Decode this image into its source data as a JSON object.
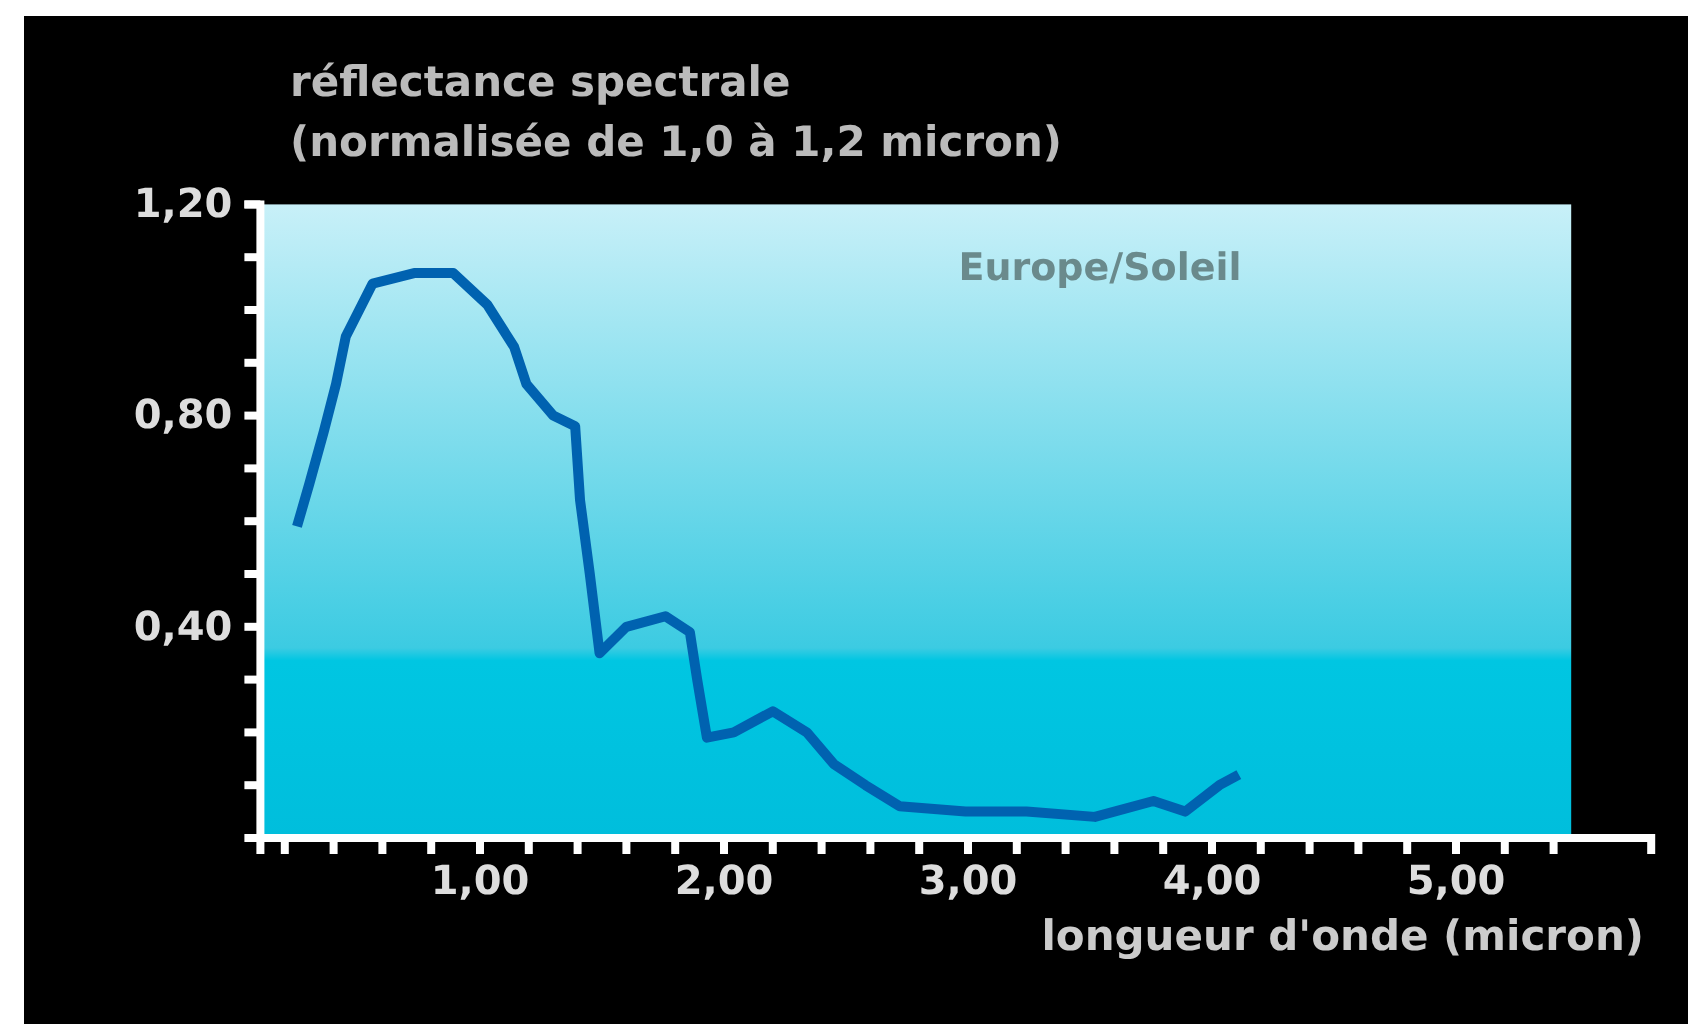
{
  "chart_data": {
    "type": "line",
    "title": "réflectance spectrale",
    "subtitle": "(normalisée de 1,0 à 1,2 micron)",
    "xlabel": "longueur d'onde (micron)",
    "annotations": [
      "Europe/Soleil"
    ],
    "xlim": [
      0.1,
      5.8
    ],
    "ylim": [
      0,
      1.2
    ],
    "xticks": [
      {
        "value": 0.2,
        "label": null
      },
      {
        "value": 0.4,
        "label": null
      },
      {
        "value": 0.6,
        "label": null
      },
      {
        "value": 0.8,
        "label": null
      },
      {
        "value": 1,
        "label": "1,00"
      },
      {
        "value": 1.2,
        "label": null
      },
      {
        "value": 1.4,
        "label": null
      },
      {
        "value": 1.6,
        "label": null
      },
      {
        "value": 1.8,
        "label": null
      },
      {
        "value": 2,
        "label": "2,00"
      },
      {
        "value": 2.2,
        "label": null
      },
      {
        "value": 2.4,
        "label": null
      },
      {
        "value": 2.6,
        "label": null
      },
      {
        "value": 2.8,
        "label": null
      },
      {
        "value": 3,
        "label": "3,00"
      },
      {
        "value": 3.2,
        "label": null
      },
      {
        "value": 3.4,
        "label": null
      },
      {
        "value": 3.6,
        "label": null
      },
      {
        "value": 3.8,
        "label": null
      },
      {
        "value": 4,
        "label": "4,00"
      },
      {
        "value": 4.2,
        "label": null
      },
      {
        "value": 4.4,
        "label": null
      },
      {
        "value": 4.6,
        "label": null
      },
      {
        "value": 4.8,
        "label": null
      },
      {
        "value": 5,
        "label": "5,00"
      },
      {
        "value": 5.2,
        "label": null
      },
      {
        "value": 5.4,
        "label": null
      }
    ],
    "yticks": [
      {
        "value": 0.1,
        "label": null
      },
      {
        "value": 0.2,
        "label": null
      },
      {
        "value": 0.3,
        "label": null
      },
      {
        "value": 0.4,
        "label": "0,40"
      },
      {
        "value": 0.5,
        "label": null
      },
      {
        "value": 0.6,
        "label": null
      },
      {
        "value": 0.7,
        "label": null
      },
      {
        "value": 0.8,
        "label": "0,80"
      },
      {
        "value": 0.9,
        "label": null
      },
      {
        "value": 1.0,
        "label": null
      },
      {
        "value": 1.1,
        "label": null
      },
      {
        "value": 1.2,
        "label": "1,20"
      }
    ],
    "x": [
      0.25,
      0.3,
      0.36,
      0.41,
      0.45,
      0.56,
      0.73,
      0.89,
      1.03,
      1.14,
      1.19,
      1.3,
      1.39,
      1.41,
      1.45,
      1.49,
      1.6,
      1.76,
      1.86,
      1.89,
      1.93,
      2.04,
      2.2,
      2.34,
      2.45,
      2.58,
      2.72,
      2.99,
      3.24,
      3.52,
      3.76,
      3.89,
      4.03,
      4.11
    ],
    "series": [
      {
        "color": "#0062b0",
        "values": [
          0.59,
          0.67,
          0.77,
          0.86,
          0.95,
          1.05,
          1.07,
          1.07,
          1.01,
          0.93,
          0.86,
          0.8,
          0.78,
          0.64,
          0.5,
          0.35,
          0.4,
          0.42,
          0.39,
          0.3,
          0.19,
          0.2,
          0.24,
          0.2,
          0.14,
          0.1,
          0.06,
          0.05,
          0.05,
          0.04,
          0.07,
          0.05,
          0.1,
          0.12
        ]
      }
    ],
    "line_style": "solid"
  }
}
